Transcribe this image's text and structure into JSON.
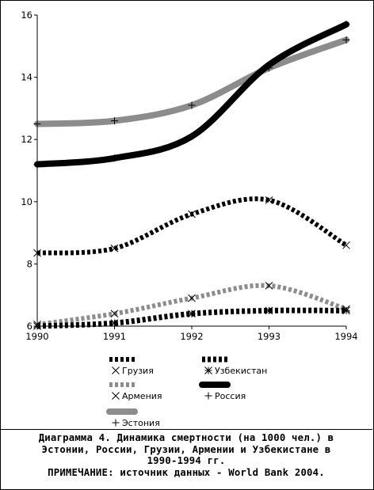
{
  "chart_data": {
    "type": "line",
    "title": "",
    "xlabel": "",
    "ylabel": "",
    "x": [
      1990,
      1991,
      1992,
      1993,
      1994
    ],
    "x_ticks": [
      "1990",
      "1991",
      "1992",
      "1993",
      "1994"
    ],
    "ylim": [
      6,
      16
    ],
    "y_ticks": [
      "6",
      "8",
      "10",
      "12",
      "14",
      "16"
    ],
    "grid": false,
    "legend_position": "bottom",
    "series": [
      {
        "name": "Грузия",
        "values": [
          8.35,
          8.5,
          9.6,
          10.05,
          8.6
        ],
        "color": "#000000",
        "dashed": true,
        "width": 6,
        "marker": "x"
      },
      {
        "name": "Армения",
        "values": [
          6.05,
          6.4,
          6.9,
          7.3,
          6.55
        ],
        "color": "#8c8c8c",
        "dashed": true,
        "width": 6,
        "marker": "x"
      },
      {
        "name": "Эстония",
        "values": [
          12.5,
          12.6,
          13.1,
          14.3,
          15.2
        ],
        "color": "#8c8c8c",
        "dashed": false,
        "width": 8,
        "marker": "plus"
      },
      {
        "name": "Узбекистан",
        "values": [
          6.0,
          6.1,
          6.4,
          6.5,
          6.5
        ],
        "color": "#000000",
        "dashed": true,
        "width": 7,
        "marker": "asterisk"
      },
      {
        "name": "Россия",
        "values": [
          11.2,
          11.4,
          12.1,
          14.4,
          15.7
        ],
        "color": "#000000",
        "dashed": false,
        "width": 8,
        "marker": "plus"
      }
    ]
  },
  "caption": {
    "line1": "Диаграмма 4. Динамика смертности (на 1000 чел.) в",
    "line2": "Эстонии, России, Грузии, Армении и Узбекистане в",
    "line3": "1990-1994 гг.",
    "line4": "ПРИМЕЧАНИЕ: источник данных - World Bank 2004."
  }
}
